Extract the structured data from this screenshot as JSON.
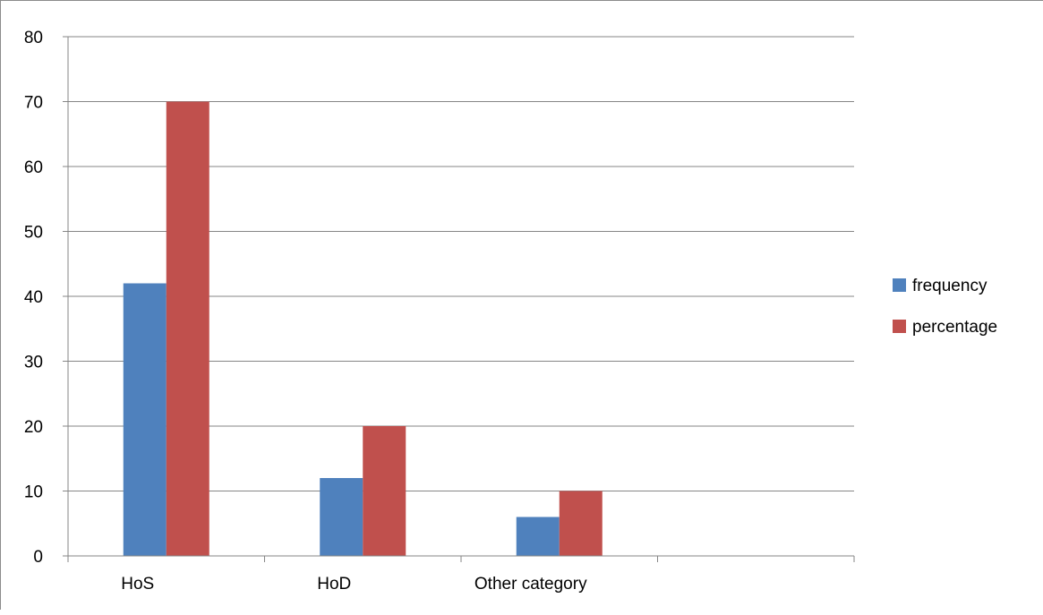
{
  "chart_data": {
    "type": "bar",
    "categories": [
      "HoS",
      "HoD",
      "Other category",
      ""
    ],
    "series": [
      {
        "name": "frequency",
        "values": [
          42,
          12,
          6,
          null
        ],
        "color": "#4f81bd"
      },
      {
        "name": "percentage",
        "values": [
          70,
          20,
          10,
          null
        ],
        "color": "#c0504d"
      }
    ],
    "yticks": [
      0,
      10,
      20,
      30,
      40,
      50,
      60,
      70,
      80
    ],
    "ylim": [
      0,
      80
    ],
    "grid": true,
    "legend": "right",
    "gridline_color": "#868686"
  }
}
